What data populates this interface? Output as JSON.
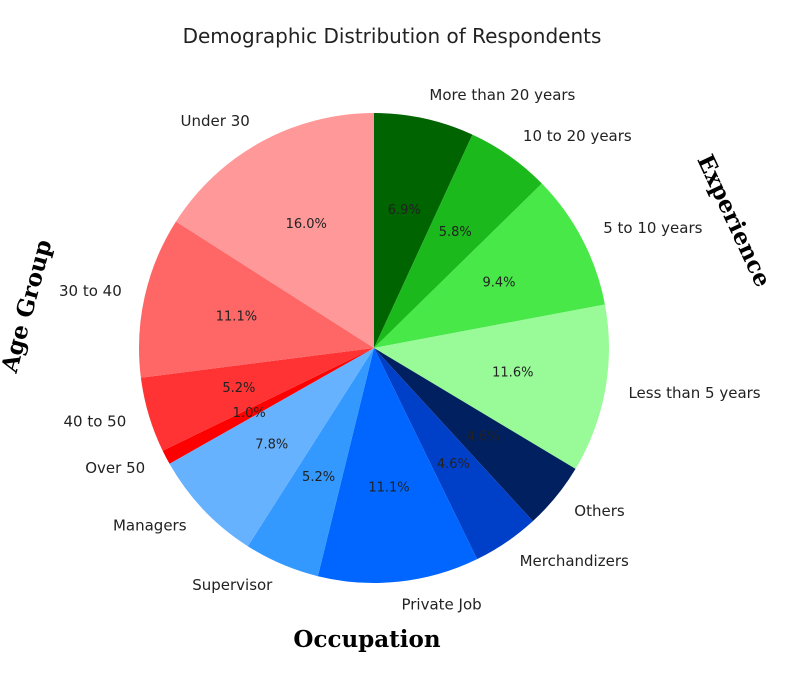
{
  "chart_data": {
    "type": "pie",
    "title": "Demographic Distribution of Respondents",
    "start_angle_deg": 90,
    "direction": "clockwise",
    "slices": [
      {
        "label": "More than 20 years",
        "value": 6.9,
        "pct_text": "6.9%",
        "color": "#006400",
        "group": "Experience"
      },
      {
        "label": "10 to 20 years",
        "value": 5.8,
        "pct_text": "5.8%",
        "color": "#1cb91c",
        "group": "Experience"
      },
      {
        "label": "5 to 10 years",
        "value": 9.4,
        "pct_text": "9.4%",
        "color": "#47e847",
        "group": "Experience"
      },
      {
        "label": "Less than 5 years",
        "value": 11.6,
        "pct_text": "11.6%",
        "color": "#98fb98",
        "group": "Experience"
      },
      {
        "label": "Others",
        "value": 4.6,
        "pct_text": "4.6%",
        "color": "#00205f",
        "group": "Occupation"
      },
      {
        "label": "Merchandizers",
        "value": 4.6,
        "pct_text": "4.6%",
        "color": "#0040c8",
        "group": "Occupation"
      },
      {
        "label": "Private Job",
        "value": 11.1,
        "pct_text": "11.1%",
        "color": "#0066ff",
        "group": "Occupation"
      },
      {
        "label": "Supervisor",
        "value": 5.2,
        "pct_text": "5.2%",
        "color": "#3399ff",
        "group": "Occupation"
      },
      {
        "label": "Managers",
        "value": 7.8,
        "pct_text": "7.8%",
        "color": "#66b2ff",
        "group": "Occupation"
      },
      {
        "label": "Over 50",
        "value": 1.0,
        "pct_text": "1.0%",
        "color": "#ff0000",
        "group": "Age Group"
      },
      {
        "label": "40 to 50",
        "value": 5.2,
        "pct_text": "5.2%",
        "color": "#ff3333",
        "group": "Age Group"
      },
      {
        "label": "30 to 40",
        "value": 11.1,
        "pct_text": "11.1%",
        "color": "#ff6666",
        "group": "Age Group"
      },
      {
        "label": "Under 30",
        "value": 16.0,
        "pct_text": "16.0%",
        "color": "#ff9999",
        "group": "Age Group"
      }
    ],
    "groups": [
      "Age Group",
      "Occupation",
      "Experience"
    ]
  }
}
